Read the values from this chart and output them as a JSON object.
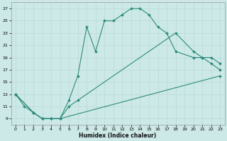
{
  "xlabel": "Humidex (Indice chaleur)",
  "xlim": [
    -0.5,
    23.5
  ],
  "ylim": [
    8,
    28
  ],
  "yticks": [
    9,
    11,
    13,
    15,
    17,
    19,
    21,
    23,
    25,
    27
  ],
  "xticks": [
    0,
    1,
    2,
    3,
    4,
    5,
    6,
    7,
    8,
    9,
    10,
    11,
    12,
    13,
    14,
    15,
    16,
    17,
    18,
    19,
    20,
    21,
    22,
    23
  ],
  "line_color": "#2E8B7A",
  "bg_color": "#CCE9E7",
  "grid_major_color": "#BBDBD9",
  "grid_minor_color": "#D8EDEC",
  "line1_x": [
    0,
    1,
    2,
    3,
    4,
    5,
    6,
    7,
    8,
    9,
    10,
    11,
    12,
    13,
    14,
    15,
    16,
    17,
    18,
    20,
    21,
    22,
    23
  ],
  "line1_y": [
    13,
    11,
    10,
    9,
    9,
    9,
    12,
    16,
    24,
    20,
    25,
    25,
    26,
    27,
    27,
    26,
    24,
    23,
    20,
    19,
    19,
    18,
    17
  ],
  "line2_x": [
    0,
    2,
    3,
    4,
    5,
    6,
    7,
    18,
    20,
    21,
    22,
    23
  ],
  "line2_y": [
    13,
    10,
    9,
    9,
    9,
    11,
    12,
    23,
    20,
    19,
    19,
    18
  ],
  "line3_x": [
    0,
    2,
    3,
    4,
    5,
    23
  ],
  "line3_y": [
    13,
    10,
    9,
    9,
    9,
    16
  ]
}
